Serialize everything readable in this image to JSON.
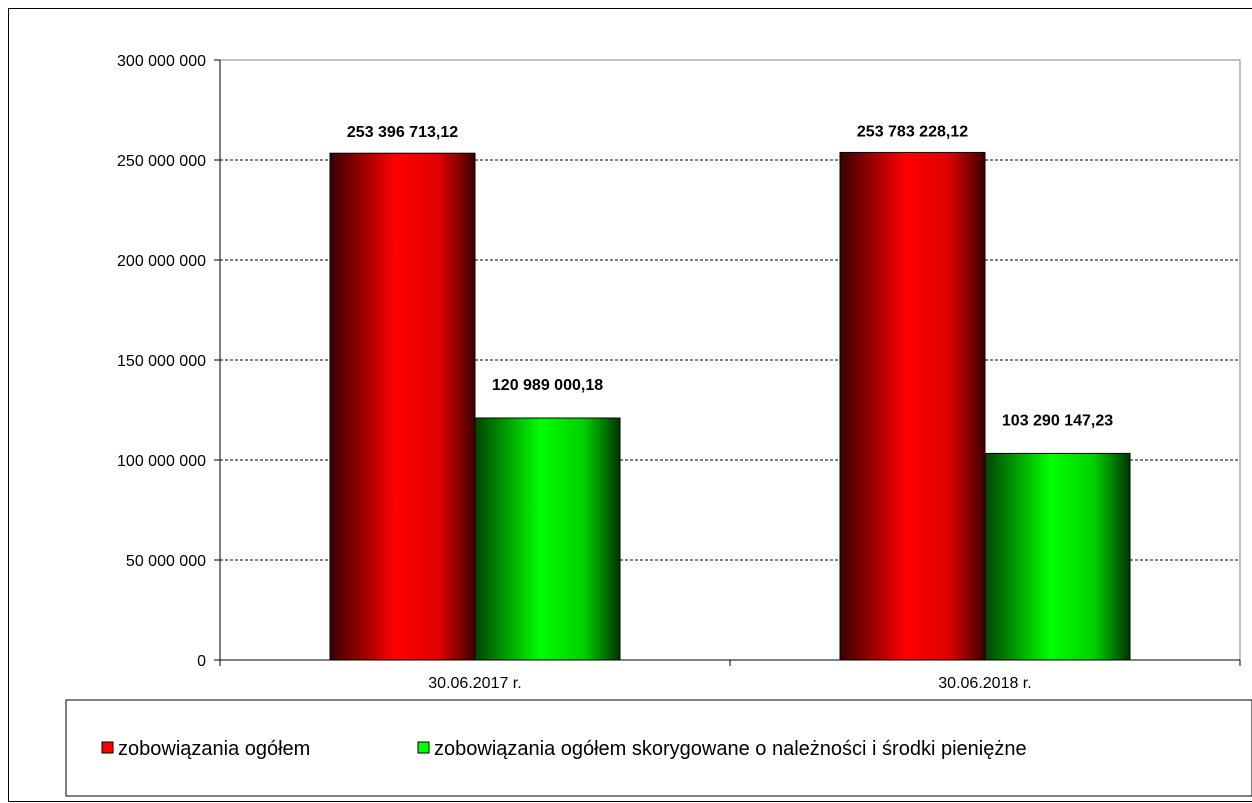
{
  "chart_data": {
    "type": "bar",
    "title": "",
    "xlabel": "",
    "ylabel": "",
    "categories": [
      "30.06.2017 r.",
      "30.06.2018 r."
    ],
    "series": [
      {
        "name": "zobowiązania ogółem",
        "values": [
          253396713.12,
          253783228.12
        ],
        "labels": [
          "253 396 713,12",
          "253 783 228,12"
        ],
        "color": "#ff0000"
      },
      {
        "name": "zobowiązania ogółem skorygowane o należności i środki pieniężne",
        "values": [
          120989000.18,
          103290147.23
        ],
        "labels": [
          "120 989 000,18",
          "103 290 147,23"
        ],
        "color": "#00ff00"
      }
    ],
    "ylim": [
      0,
      300000000
    ],
    "yticks": [
      0,
      50000000,
      100000000,
      150000000,
      200000000,
      250000000,
      300000000
    ],
    "ytick_labels": [
      "0",
      "50 000 000",
      "100 000 000",
      "150 000 000",
      "200 000 000",
      "250 000 000",
      "300 000 000"
    ],
    "grid": "horizontal dashed",
    "legend_position": "bottom"
  }
}
